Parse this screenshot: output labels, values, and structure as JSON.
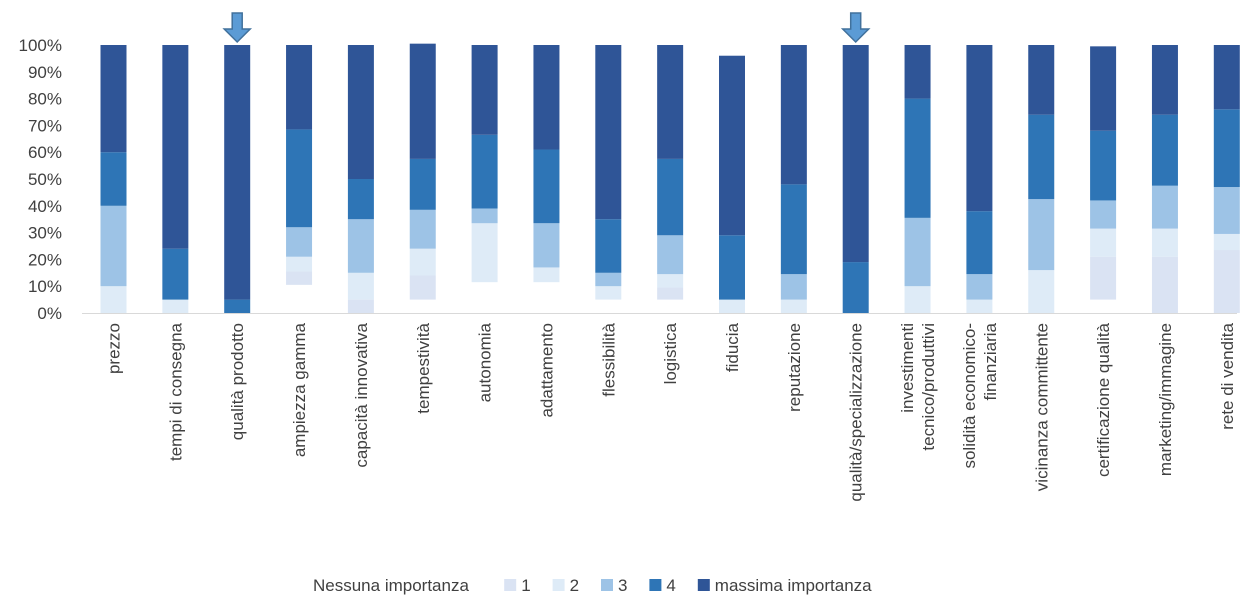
{
  "chart_data": {
    "type": "bar",
    "stacked": true,
    "percent_axis": true,
    "ylim": [
      0,
      100
    ],
    "yticks": [
      "0%",
      "10%",
      "20%",
      "30%",
      "40%",
      "50%",
      "60%",
      "70%",
      "80%",
      "90%",
      "100%"
    ],
    "grid": false,
    "legend_position": "bottom",
    "categories": [
      "prezzo",
      "tempi di consegna",
      "qualità prodotto",
      "ampiezza gamma",
      "capacità innovativa",
      "tempestività",
      "autonomia",
      "adattamento",
      "flessibilità",
      "logistica",
      "fiducia",
      "reputazione",
      "qualità/specializzazione",
      "investimenti tecnico/produttivi",
      "solidità economico-finanziaria",
      "vicinanza committente",
      "certificazione qualità",
      "marketing/immagine",
      "rete di vendita"
    ],
    "category_lines": [
      [
        "prezzo"
      ],
      [
        "tempi di consegna"
      ],
      [
        "qualità prodotto"
      ],
      [
        "ampiezza gamma"
      ],
      [
        "capacità innovativa"
      ],
      [
        "tempestività"
      ],
      [
        "autonomia"
      ],
      [
        "adattamento"
      ],
      [
        "flessibilità"
      ],
      [
        "logistica"
      ],
      [
        "fiducia"
      ],
      [
        "reputazione"
      ],
      [
        "qualità/specializzazione"
      ],
      [
        "investimenti",
        "tecnico/produttivi"
      ],
      [
        "solidità economico-",
        "finanziaria"
      ],
      [
        "vicinanza committente"
      ],
      [
        "certificazione qualità"
      ],
      [
        "marketing/immagine"
      ],
      [
        "rete di vendita"
      ]
    ],
    "series": [
      {
        "name": "Nessuna importanza",
        "color": "#ffffff",
        "values": [
          0,
          0,
          0,
          10.5,
          0,
          5,
          11.5,
          11.5,
          5,
          5,
          0,
          0,
          0,
          0,
          0,
          0,
          5,
          0,
          0
        ]
      },
      {
        "name": "1",
        "color": "#dae3f3",
        "values": [
          0,
          0,
          0,
          5,
          5,
          9,
          0,
          0,
          0,
          4.5,
          0,
          0,
          0,
          0,
          0,
          0,
          16,
          21,
          23.5
        ]
      },
      {
        "name": "2",
        "color": "#deebf7",
        "values": [
          10,
          5,
          0,
          5.5,
          10,
          10,
          22,
          5.5,
          5,
          5,
          5,
          5,
          0,
          10,
          5,
          16,
          10.5,
          10.5,
          6
        ]
      },
      {
        "name": "3",
        "color": "#9dc3e6",
        "values": [
          30,
          0,
          0,
          11,
          20,
          14.5,
          5.5,
          16.5,
          5,
          14.5,
          0,
          9.5,
          0,
          25.5,
          9.5,
          26.5,
          10.5,
          16,
          17.5
        ]
      },
      {
        "name": "4",
        "color": "#2e75b6",
        "values": [
          20,
          19,
          5,
          36.5,
          15,
          19,
          27.5,
          27.5,
          20,
          28.5,
          24,
          33.5,
          19,
          44.5,
          23.5,
          31.5,
          26,
          26.5,
          29
        ]
      },
      {
        "name": "massima importanza",
        "color": "#2f5597",
        "values": [
          40,
          76,
          95,
          31.5,
          50,
          43,
          33.5,
          39,
          65,
          42.5,
          67,
          52,
          81,
          20,
          62,
          26,
          31.5,
          26,
          24
        ]
      }
    ],
    "highlighted_categories": [
      "qualità prodotto",
      "qualità/specializzazione"
    ],
    "arrow_color": "#5b9bd5"
  }
}
